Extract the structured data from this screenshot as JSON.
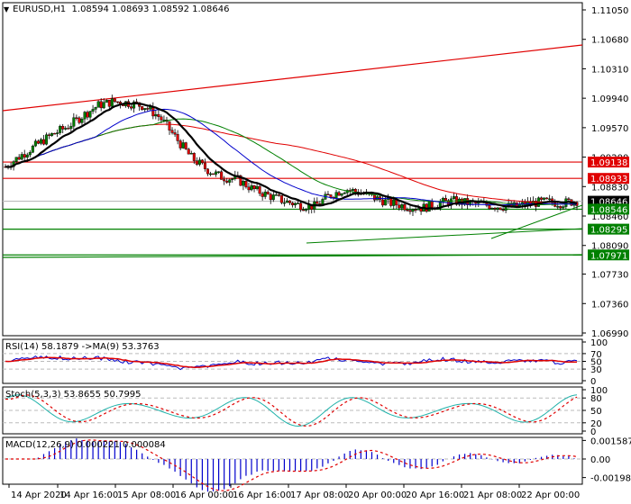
{
  "header": {
    "symbol": "EURUSD,H1",
    "ohlc": "1.08594 1.08693 1.08592 1.08646",
    "full": "EURUSD,H1  1.08594 1.08693 1.08592 1.08646"
  },
  "colors": {
    "bull": "#008000",
    "bear": "#e00000",
    "ma_fast": "#000000",
    "ma_mid": "#0000cc",
    "ma_slow": "#008000",
    "ma_slowest": "#e00000",
    "support": "#008000",
    "resistance": "#e00000",
    "current": "#000000",
    "rsi": "#0000cc",
    "rsi_ma": "#e00000",
    "stoch_main": "#20b2aa",
    "stoch_signal": "#e00000",
    "macd_hist": "#0000cc",
    "macd_signal": "#e00000"
  },
  "price_axis": {
    "ticks": [
      "1.11050",
      "1.10680",
      "1.10310",
      "1.09940",
      "1.09570",
      "1.09200",
      "1.08830",
      "1.08460",
      "1.08090",
      "1.07730",
      "1.07360",
      "1.06990"
    ],
    "tags": [
      {
        "value": "1.09138",
        "bg": "#e00000"
      },
      {
        "value": "1.08933",
        "bg": "#e00000"
      },
      {
        "value": "1.08646",
        "bg": "#000000"
      },
      {
        "value": "1.08546",
        "bg": "#008000"
      },
      {
        "value": "1.08295",
        "bg": "#008000"
      },
      {
        "value": "1.07971",
        "bg": "#008000"
      }
    ]
  },
  "rsi": {
    "label": "RSI(14) 58.1879  ->MA(9) 53.3763",
    "ticks": [
      "100",
      "70",
      "50",
      "30",
      "0"
    ]
  },
  "stoch": {
    "label": "Stoch(5,3,3) 53.8655 50.7995",
    "ticks": [
      "100",
      "80",
      "50",
      "20",
      "0"
    ]
  },
  "macd": {
    "label": "MACD(12,26,9) 0.000221 0.000084",
    "ticks": [
      "0.001587",
      "0.00",
      "-0.001984"
    ]
  },
  "time_axis": [
    "14 Apr 2020",
    "14 Apr 16:00",
    "15 Apr 08:00",
    "16 Apr 00:00",
    "16 Apr 16:00",
    "17 Apr 08:00",
    "20 Apr 00:00",
    "20 Apr 16:00",
    "21 Apr 08:00",
    "22 Apr 00:00"
  ],
  "chart_data": {
    "type": "candlestick",
    "title": "EURUSD,H1",
    "subtitle": "1.08594 1.08693 1.08592 1.08646",
    "ylim": [
      1.0699,
      1.1105
    ],
    "price_levels": {
      "resistance": [
        1.09138,
        1.08933
      ],
      "current": 1.08646,
      "support": [
        1.08546,
        1.08295,
        1.07971
      ]
    },
    "x_labels": [
      "14 Apr 2020",
      "14 Apr 16:00",
      "15 Apr 08:00",
      "16 Apr 00:00",
      "16 Apr 16:00",
      "17 Apr 08:00",
      "20 Apr 00:00",
      "20 Apr 16:00",
      "21 Apr 08:00",
      "22 Apr 00:00"
    ],
    "close_path": [
      1.0908,
      1.0922,
      1.0935,
      1.0948,
      1.0958,
      1.0972,
      1.0985,
      1.099,
      1.0988,
      1.0984,
      1.097,
      1.0945,
      1.092,
      1.0905,
      1.0895,
      1.0892,
      1.088,
      1.0872,
      1.0865,
      1.086,
      1.0858,
      1.0872,
      1.088,
      1.0875,
      1.0868,
      1.0862,
      1.0858,
      1.0856,
      1.0862,
      1.0865,
      1.0862,
      1.086,
      1.0858,
      1.0858,
      1.0862,
      1.0864,
      1.0862,
      1.0865
    ],
    "indicators": {
      "rsi": {
        "period": 14,
        "value": 58.1879,
        "ma_period": 9,
        "ma_value": 53.3763,
        "levels": [
          70,
          50,
          30
        ]
      },
      "stochastic": {
        "params": "5,3,3",
        "main": 53.8655,
        "signal": 50.7995,
        "levels": [
          80,
          50,
          20
        ]
      },
      "macd": {
        "params": "12,26,9",
        "main": 0.000221,
        "signal": 8.4e-05,
        "range": [
          -0.001984,
          0.001587
        ]
      }
    }
  }
}
